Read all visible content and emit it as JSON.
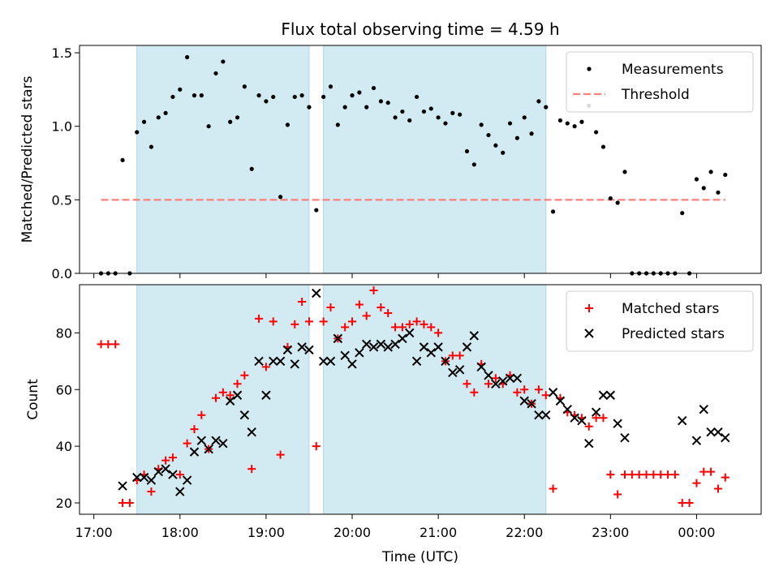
{
  "title": "Flux total observing time = 4.59 h",
  "xlabel": "Time (UTC)",
  "x_ticks": [
    "17:00",
    "18:00",
    "19:00",
    "20:00",
    "21:00",
    "22:00",
    "23:00",
    "00:00"
  ],
  "shaded_color": "#add8e6",
  "chart_data": [
    {
      "type": "scatter",
      "ylabel": "Matched/Predicted stars",
      "ylim": [
        0,
        1.55
      ],
      "y_ticks": [
        "0.0",
        "0.5",
        "1.0",
        "1.5"
      ],
      "x_range": [
        "16:50",
        "00:45"
      ],
      "shaded_intervals": [
        [
          "17:30",
          "19:30"
        ],
        [
          "19:40",
          "22:15"
        ]
      ],
      "legend": "top-right",
      "threshold": {
        "name": "Threshold",
        "value": 0.5,
        "x_start": "17:05",
        "x_end": "00:20",
        "color": "#ff7f7f"
      },
      "series": [
        {
          "name": "Measurements",
          "color": "#000000",
          "marker": "dot",
          "points": [
            [
              "17:05",
              0.0
            ],
            [
              "17:10",
              0.0
            ],
            [
              "17:15",
              0.0
            ],
            [
              "17:20",
              0.77
            ],
            [
              "17:25",
              0.0
            ],
            [
              "17:30",
              0.96
            ],
            [
              "17:35",
              1.03
            ],
            [
              "17:40",
              0.86
            ],
            [
              "17:45",
              1.06
            ],
            [
              "17:50",
              1.09
            ],
            [
              "17:55",
              1.2
            ],
            [
              "18:00",
              1.25
            ],
            [
              "18:05",
              1.47
            ],
            [
              "18:10",
              1.21
            ],
            [
              "18:15",
              1.21
            ],
            [
              "18:20",
              1.0
            ],
            [
              "18:25",
              1.36
            ],
            [
              "18:30",
              1.44
            ],
            [
              "18:35",
              1.03
            ],
            [
              "18:40",
              1.06
            ],
            [
              "18:45",
              1.27
            ],
            [
              "18:50",
              0.71
            ],
            [
              "18:55",
              1.21
            ],
            [
              "19:00",
              1.17
            ],
            [
              "19:05",
              1.2
            ],
            [
              "19:10",
              0.52
            ],
            [
              "19:15",
              1.01
            ],
            [
              "19:20",
              1.2
            ],
            [
              "19:25",
              1.21
            ],
            [
              "19:30",
              1.13
            ],
            [
              "19:35",
              0.43
            ],
            [
              "19:40",
              1.2
            ],
            [
              "19:45",
              1.27
            ],
            [
              "19:50",
              1.01
            ],
            [
              "19:55",
              1.13
            ],
            [
              "20:00",
              1.21
            ],
            [
              "20:05",
              1.23
            ],
            [
              "20:10",
              1.13
            ],
            [
              "20:15",
              1.26
            ],
            [
              "20:20",
              1.17
            ],
            [
              "20:25",
              1.16
            ],
            [
              "20:30",
              1.06
            ],
            [
              "20:35",
              1.1
            ],
            [
              "20:40",
              1.04
            ],
            [
              "20:45",
              1.2
            ],
            [
              "20:50",
              1.1
            ],
            [
              "20:55",
              1.12
            ],
            [
              "21:00",
              1.06
            ],
            [
              "21:05",
              1.02
            ],
            [
              "21:10",
              1.09
            ],
            [
              "21:15",
              1.08
            ],
            [
              "21:20",
              0.83
            ],
            [
              "21:25",
              0.74
            ],
            [
              "21:30",
              1.01
            ],
            [
              "21:35",
              0.94
            ],
            [
              "21:40",
              0.87
            ],
            [
              "21:45",
              0.82
            ],
            [
              "21:50",
              1.02
            ],
            [
              "21:55",
              0.92
            ],
            [
              "22:00",
              1.06
            ],
            [
              "22:05",
              0.95
            ],
            [
              "22:10",
              1.17
            ],
            [
              "22:15",
              1.13
            ],
            [
              "22:20",
              0.42
            ],
            [
              "22:25",
              1.04
            ],
            [
              "22:30",
              1.02
            ],
            [
              "22:35",
              1.0
            ],
            [
              "22:40",
              1.03
            ],
            [
              "22:45",
              1.14
            ],
            [
              "22:50",
              0.96
            ],
            [
              "22:55",
              0.86
            ],
            [
              "23:00",
              0.51
            ],
            [
              "23:05",
              0.48
            ],
            [
              "23:10",
              0.69
            ],
            [
              "23:15",
              0.0
            ],
            [
              "23:20",
              0.0
            ],
            [
              "23:25",
              0.0
            ],
            [
              "23:30",
              0.0
            ],
            [
              "23:35",
              0.0
            ],
            [
              "23:40",
              0.0
            ],
            [
              "23:45",
              0.0
            ],
            [
              "23:50",
              0.41
            ],
            [
              "23:55",
              0.0
            ],
            [
              "00:00",
              0.64
            ],
            [
              "00:05",
              0.58
            ],
            [
              "00:10",
              0.69
            ],
            [
              "00:15",
              0.55
            ],
            [
              "00:20",
              0.67
            ]
          ]
        }
      ]
    },
    {
      "type": "scatter",
      "ylabel": "Count",
      "ylim": [
        16,
        97
      ],
      "y_ticks": [
        "20",
        "40",
        "60",
        "80"
      ],
      "x_range": [
        "16:50",
        "00:45"
      ],
      "shaded_intervals": [
        [
          "17:30",
          "19:30"
        ],
        [
          "19:40",
          "22:15"
        ]
      ],
      "legend": "top-right",
      "series": [
        {
          "name": "Matched stars",
          "color": "#ff0000",
          "marker": "plus",
          "points": [
            [
              "17:05",
              76
            ],
            [
              "17:10",
              76
            ],
            [
              "17:15",
              76
            ],
            [
              "17:20",
              20
            ],
            [
              "17:25",
              20
            ],
            [
              "17:30",
              28
            ],
            [
              "17:35",
              30
            ],
            [
              "17:40",
              24
            ],
            [
              "17:45",
              32
            ],
            [
              "17:50",
              35
            ],
            [
              "17:55",
              36
            ],
            [
              "18:00",
              30
            ],
            [
              "18:05",
              41
            ],
            [
              "18:10",
              46
            ],
            [
              "18:15",
              51
            ],
            [
              "18:20",
              39
            ],
            [
              "18:25",
              57
            ],
            [
              "18:30",
              59
            ],
            [
              "18:35",
              58
            ],
            [
              "18:40",
              62
            ],
            [
              "18:45",
              65
            ],
            [
              "18:50",
              32
            ],
            [
              "18:55",
              85
            ],
            [
              "19:00",
              68
            ],
            [
              "19:05",
              84
            ],
            [
              "19:10",
              37
            ],
            [
              "19:15",
              75
            ],
            [
              "19:20",
              83
            ],
            [
              "19:25",
              91
            ],
            [
              "19:30",
              84
            ],
            [
              "19:35",
              40
            ],
            [
              "19:40",
              84
            ],
            [
              "19:45",
              89
            ],
            [
              "19:50",
              78
            ],
            [
              "19:55",
              82
            ],
            [
              "20:00",
              84
            ],
            [
              "20:05",
              90
            ],
            [
              "20:10",
              86
            ],
            [
              "20:15",
              95
            ],
            [
              "20:20",
              89
            ],
            [
              "20:25",
              87
            ],
            [
              "20:30",
              82
            ],
            [
              "20:35",
              82
            ],
            [
              "20:40",
              83
            ],
            [
              "20:45",
              84
            ],
            [
              "20:50",
              83
            ],
            [
              "20:55",
              82
            ],
            [
              "21:00",
              80
            ],
            [
              "21:05",
              70
            ],
            [
              "21:10",
              72
            ],
            [
              "21:15",
              72
            ],
            [
              "21:20",
              62
            ],
            [
              "21:25",
              59
            ],
            [
              "21:30",
              69
            ],
            [
              "21:35",
              62
            ],
            [
              "21:40",
              64
            ],
            [
              "21:45",
              62
            ],
            [
              "21:50",
              65
            ],
            [
              "21:55",
              59
            ],
            [
              "22:00",
              60
            ],
            [
              "22:05",
              55
            ],
            [
              "22:10",
              60
            ],
            [
              "22:15",
              58
            ],
            [
              "22:20",
              25
            ],
            [
              "22:25",
              57
            ],
            [
              "22:30",
              52
            ],
            [
              "22:35",
              51
            ],
            [
              "22:40",
              50
            ],
            [
              "22:45",
              47
            ],
            [
              "22:50",
              50
            ],
            [
              "22:55",
              50
            ],
            [
              "23:00",
              30
            ],
            [
              "23:05",
              23
            ],
            [
              "23:10",
              30
            ],
            [
              "23:15",
              30
            ],
            [
              "23:20",
              30
            ],
            [
              "23:25",
              30
            ],
            [
              "23:30",
              30
            ],
            [
              "23:35",
              30
            ],
            [
              "23:40",
              30
            ],
            [
              "23:45",
              30
            ],
            [
              "23:50",
              20
            ],
            [
              "23:55",
              20
            ],
            [
              "00:00",
              27
            ],
            [
              "00:05",
              31
            ],
            [
              "00:10",
              31
            ],
            [
              "00:15",
              25
            ],
            [
              "00:20",
              29
            ]
          ]
        },
        {
          "name": "Predicted stars",
          "color": "#000000",
          "marker": "x",
          "points": [
            [
              "17:20",
              26
            ],
            [
              "17:30",
              29
            ],
            [
              "17:35",
              29
            ],
            [
              "17:40",
              28
            ],
            [
              "17:45",
              31
            ],
            [
              "17:50",
              32
            ],
            [
              "17:55",
              30
            ],
            [
              "18:00",
              24
            ],
            [
              "18:05",
              28
            ],
            [
              "18:10",
              38
            ],
            [
              "18:15",
              42
            ],
            [
              "18:20",
              39
            ],
            [
              "18:25",
              42
            ],
            [
              "18:30",
              41
            ],
            [
              "18:35",
              56
            ],
            [
              "18:40",
              58
            ],
            [
              "18:45",
              51
            ],
            [
              "18:50",
              45
            ],
            [
              "18:55",
              70
            ],
            [
              "19:00",
              58
            ],
            [
              "19:05",
              70
            ],
            [
              "19:10",
              70
            ],
            [
              "19:15",
              74
            ],
            [
              "19:20",
              69
            ],
            [
              "19:25",
              75
            ],
            [
              "19:30",
              74
            ],
            [
              "19:35",
              94
            ],
            [
              "19:40",
              70
            ],
            [
              "19:45",
              70
            ],
            [
              "19:50",
              78
            ],
            [
              "19:55",
              72
            ],
            [
              "20:00",
              69
            ],
            [
              "20:05",
              73
            ],
            [
              "20:10",
              76
            ],
            [
              "20:15",
              75
            ],
            [
              "20:20",
              76
            ],
            [
              "20:25",
              75
            ],
            [
              "20:30",
              76
            ],
            [
              "20:35",
              78
            ],
            [
              "20:40",
              80
            ],
            [
              "20:45",
              70
            ],
            [
              "20:50",
              75
            ],
            [
              "20:55",
              73
            ],
            [
              "21:00",
              75
            ],
            [
              "21:05",
              70
            ],
            [
              "21:10",
              66
            ],
            [
              "21:15",
              67
            ],
            [
              "21:20",
              75
            ],
            [
              "21:25",
              79
            ],
            [
              "21:30",
              68
            ],
            [
              "21:35",
              65
            ],
            [
              "21:40",
              62
            ],
            [
              "21:45",
              63
            ],
            [
              "21:50",
              64
            ],
            [
              "21:55",
              64
            ],
            [
              "22:00",
              56
            ],
            [
              "22:05",
              55
            ],
            [
              "22:10",
              51
            ],
            [
              "22:15",
              51
            ],
            [
              "22:20",
              59
            ],
            [
              "22:25",
              56
            ],
            [
              "22:30",
              53
            ],
            [
              "22:35",
              50
            ],
            [
              "22:40",
              49
            ],
            [
              "22:45",
              41
            ],
            [
              "22:50",
              52
            ],
            [
              "22:55",
              58
            ],
            [
              "23:00",
              58
            ],
            [
              "23:05",
              48
            ],
            [
              "23:10",
              43
            ],
            [
              "23:50",
              49
            ],
            [
              "00:00",
              42
            ],
            [
              "00:05",
              53
            ],
            [
              "00:10",
              45
            ],
            [
              "00:15",
              45
            ],
            [
              "00:20",
              43
            ]
          ]
        }
      ]
    }
  ]
}
